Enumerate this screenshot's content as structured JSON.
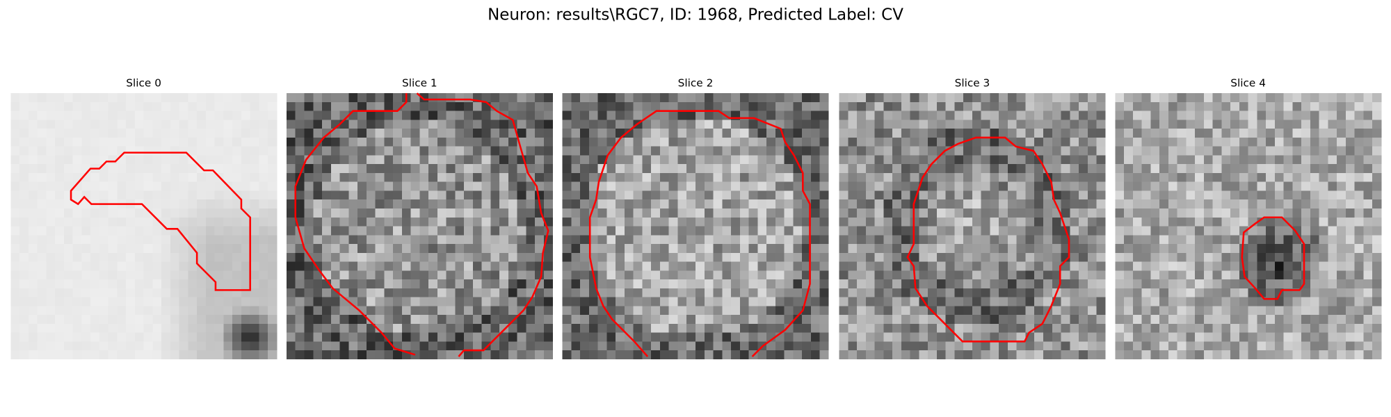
{
  "title": "Neuron: results\\RGC7, ID: 1968, Predicted Label: CV",
  "panels": [
    {
      "title": "Slice 0"
    },
    {
      "title": "Slice 1"
    },
    {
      "title": "Slice 2"
    },
    {
      "title": "Slice 3"
    },
    {
      "title": "Slice 4"
    }
  ]
}
